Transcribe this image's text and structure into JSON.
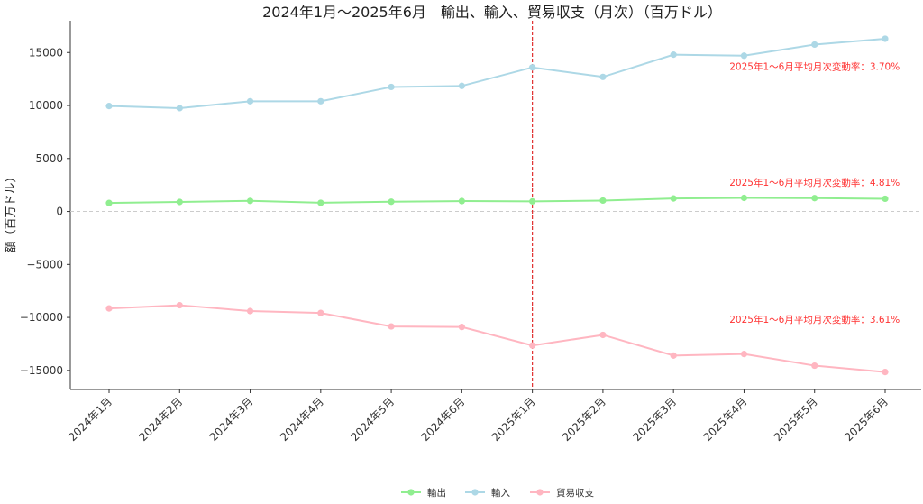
{
  "chart_data": {
    "type": "line",
    "title": "2024年1月～2025年6月　輸出、輸入、貿易収支（月次）（百万ドル）",
    "xlabel": "",
    "ylabel": "額（百万ドル）",
    "categories": [
      "2024年1月",
      "2024年2月",
      "2024年3月",
      "2024年4月",
      "2024年5月",
      "2024年6月",
      "2025年1月",
      "2025年2月",
      "2025年3月",
      "2025年4月",
      "2025年5月",
      "2025年6月"
    ],
    "ylim": [
      -16800,
      18000
    ],
    "yticks": [
      -15000,
      -10000,
      -5000,
      0,
      5000,
      10000,
      15000
    ],
    "ytick_labels": [
      "−15000",
      "−10000",
      "−5000",
      "0",
      "5000",
      "10000",
      "15000"
    ],
    "grid": false,
    "zero_line": true,
    "divider_category": "2025年1月",
    "legend_position": "bottom-center",
    "series": [
      {
        "name": "輸出",
        "color": "#90EE90",
        "values": [
          800,
          900,
          1000,
          820,
          920,
          980,
          950,
          1030,
          1230,
          1280,
          1260,
          1200
        ]
      },
      {
        "name": "輸入",
        "color": "#ADD8E6",
        "values": [
          9950,
          9750,
          10400,
          10400,
          11750,
          11850,
          13600,
          12700,
          14800,
          14700,
          15750,
          16300
        ]
      },
      {
        "name": "貿易収支",
        "color": "#FFB6C1",
        "values": [
          -9150,
          -8850,
          -9400,
          -9580,
          -10850,
          -10900,
          -12650,
          -11650,
          -13600,
          -13450,
          -14550,
          -15150
        ]
      }
    ],
    "annotations": [
      {
        "text": "2025年1～6月平均月次変動率：3.70%",
        "x": "2025年5月",
        "y": 13350,
        "color": "#FF3333"
      },
      {
        "text": "2025年1～6月平均月次変動率：4.81%",
        "x": "2025年5月",
        "y": 2450,
        "color": "#FF3333"
      },
      {
        "text": "2025年1～6月平均月次変動率：3.61%",
        "x": "2025年5月",
        "y": -10500,
        "color": "#FF3333"
      }
    ]
  }
}
